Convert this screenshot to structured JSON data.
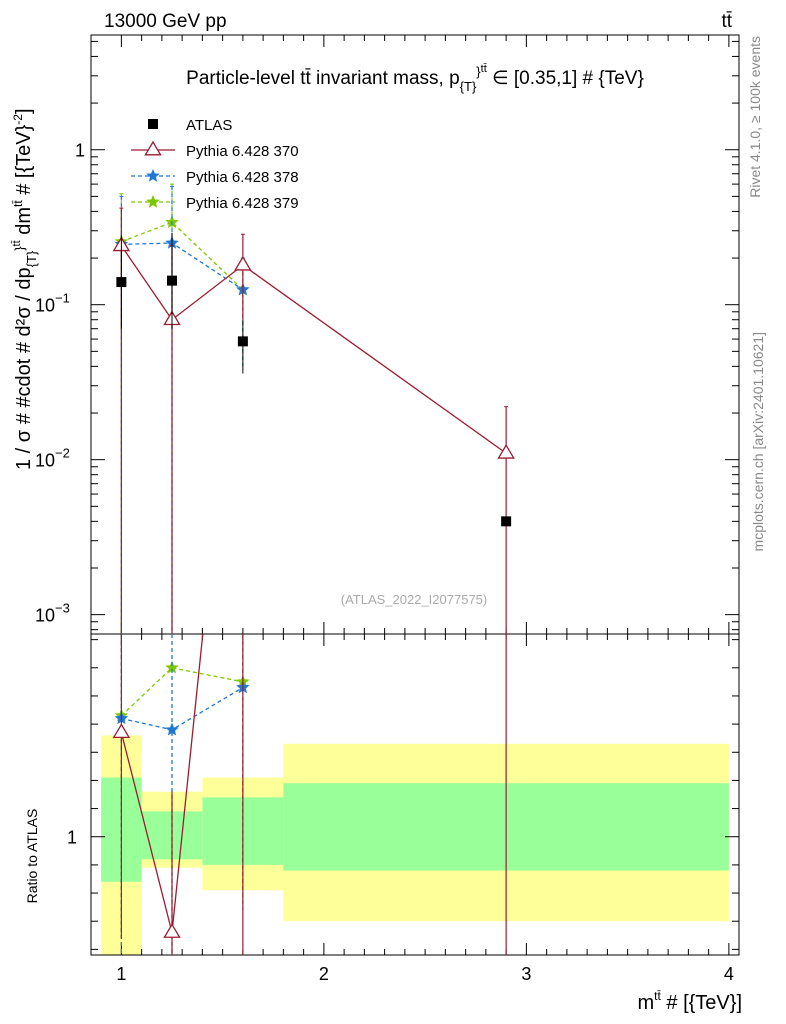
{
  "header": {
    "energy_label": "13000 GeV pp",
    "process_label": "tt̄"
  },
  "side_labels": {
    "rivet": "Rivet 4.1.0, ≥ 100k events",
    "mcplots": "mcplots.cern.ch [arXiv:2401.10621]"
  },
  "chart_data": {
    "type": "scatter",
    "title": "Particle-level tt̄ invariant mass, p_{T}^{tt̄} ∈ [0.35,1] # {TeV}",
    "ylabel": "1 / σ # #cdot # d²σ / dp_{T}^{tt̄} dm^{tt̄} # [{TeV}⁻²]",
    "xlabel": "m^{tt̄} # [{TeV}]",
    "ratio_ylabel": "Ratio to ATLAS",
    "watermark": "(ATLAS_2022_I2077575)",
    "yscale": "log",
    "xlim": [
      0.85,
      4.05
    ],
    "ylim": [
      0.00075,
      5.5
    ],
    "ratio_ylim": [
      0.58,
      1.72
    ],
    "x_ticks": [
      1,
      2,
      3,
      4
    ],
    "y_ticks": [
      {
        "value": 0.001,
        "base": "10",
        "exp": "−3"
      },
      {
        "value": 0.01,
        "base": "10",
        "exp": "−2"
      },
      {
        "value": 0.1,
        "base": "10",
        "exp": "−1"
      },
      {
        "value": 1,
        "base": "1",
        "exp": ""
      }
    ],
    "ratio_ticks": [
      {
        "value": 1,
        "label": "1"
      }
    ],
    "legend": {
      "position": "top-left"
    },
    "series": [
      {
        "name": "ATLAS",
        "style": "data",
        "color": "#000000",
        "x": [
          1.0,
          1.25,
          1.6,
          2.9
        ],
        "y": [
          0.14,
          0.143,
          0.058,
          0.004
        ],
        "yerr_low": [
          0.07,
          0.07,
          0.036,
          0.0
        ],
        "yerr_high": [
          0.28,
          0.29,
          0.08,
          0.004
        ]
      },
      {
        "name": "Pythia 6.428 370",
        "style": "solid",
        "marker": "open-triangle",
        "color": "#9b1b30",
        "x": [
          1.0,
          1.25,
          1.6,
          2.9
        ],
        "y": [
          0.24,
          0.08,
          0.18,
          0.011
        ],
        "yerr_low": [
          0.0001,
          0.0001,
          0.08,
          0.0001
        ],
        "yerr_high": [
          0.42,
          0.24,
          0.285,
          0.022
        ],
        "ratio": [
          1.37,
          0.66,
          3.1,
          2.75
        ],
        "ratio_err_low": [
          0.64,
          0.2,
          0.2,
          0.2
        ],
        "ratio_err_high": [
          1.72,
          1.16,
          1.72,
          1.72
        ]
      },
      {
        "name": "Pythia 6.428 378",
        "style": "dashed",
        "marker": "star",
        "color": "#1f78d4",
        "x": [
          1.0,
          1.25,
          1.6
        ],
        "y": [
          0.245,
          0.25,
          0.125
        ],
        "yerr_low": [
          0.0001,
          0.0001,
          0.04
        ],
        "yerr_high": [
          0.5,
          0.58,
          0.2
        ],
        "ratio": [
          1.42,
          1.38,
          1.53
        ],
        "ratio_err_low": [
          0.2,
          0.2,
          0.74
        ],
        "ratio_err_high": [
          1.72,
          1.72,
          1.72
        ]
      },
      {
        "name": "Pythia 6.428 379",
        "style": "dashed",
        "marker": "star",
        "color": "#7cc800",
        "x": [
          1.0,
          1.25,
          1.6
        ],
        "y": [
          0.255,
          0.34,
          0.125
        ],
        "yerr_low": [
          0.0001,
          0.0001,
          0.04
        ],
        "yerr_high": [
          0.52,
          0.6,
          0.2
        ],
        "ratio": [
          1.43,
          1.6,
          1.55
        ],
        "ratio_err_low": [
          0.2,
          0.2,
          0.75
        ],
        "ratio_err_high": [
          1.72,
          1.72,
          1.72
        ]
      }
    ],
    "ratio_bands": [
      {
        "x_low": 0.9,
        "x_high": 1.1,
        "green_low": 0.84,
        "green_high": 1.21,
        "yellow_low": 0.55,
        "yellow_high": 1.36
      },
      {
        "x_low": 1.1,
        "x_high": 1.4,
        "green_low": 0.92,
        "green_high": 1.09,
        "yellow_low": 0.89,
        "yellow_high": 1.16
      },
      {
        "x_low": 1.4,
        "x_high": 1.8,
        "green_low": 0.9,
        "green_high": 1.14,
        "yellow_low": 0.81,
        "yellow_high": 1.21
      },
      {
        "x_low": 1.8,
        "x_high": 4.0,
        "green_low": 0.88,
        "green_high": 1.19,
        "yellow_low": 0.7,
        "yellow_high": 1.33
      }
    ]
  }
}
